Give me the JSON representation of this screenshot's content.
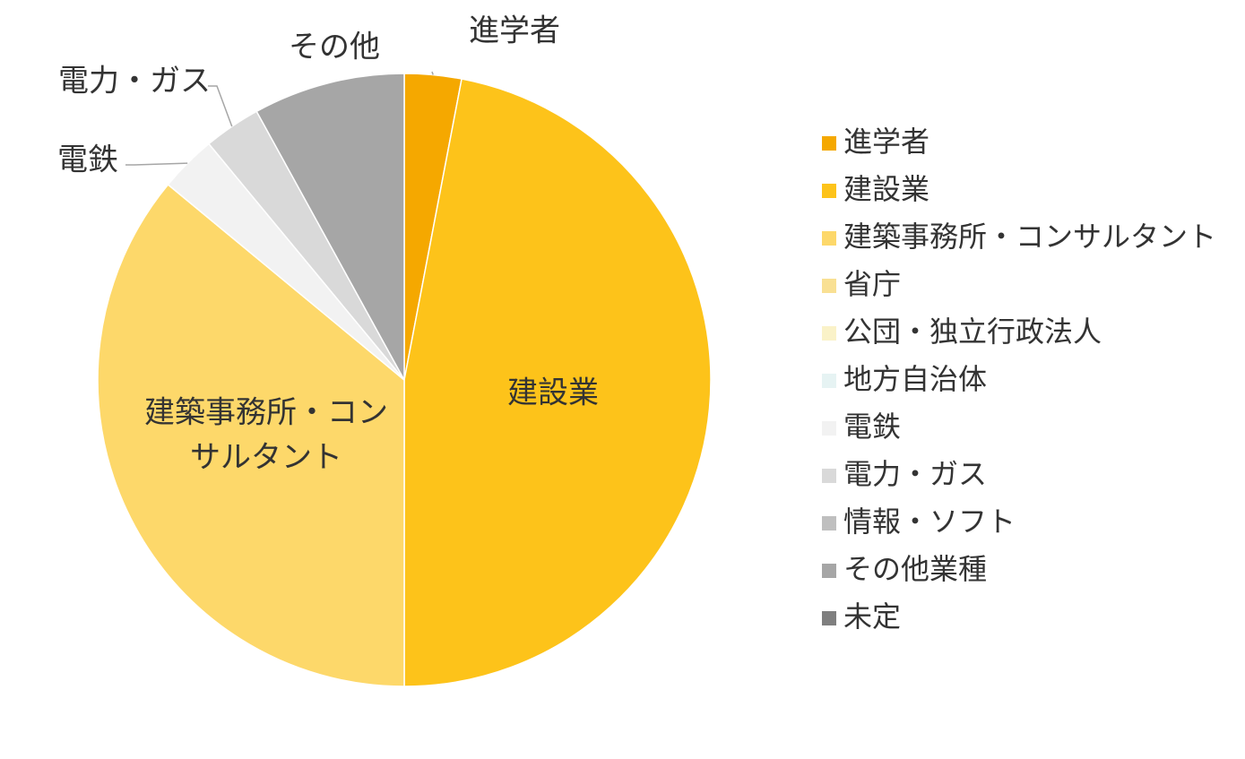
{
  "chart_data": {
    "type": "pie",
    "categories": [
      "進学者",
      "建設業",
      "建築事務所・コンサルタント",
      "省庁",
      "公団・独立行政法人",
      "地方自治体",
      "電鉄",
      "電力・ガス",
      "情報・ソフト",
      "その他業種",
      "未定"
    ],
    "values": [
      3.0,
      47.0,
      36.0,
      0,
      0,
      0,
      3.0,
      3.0,
      0,
      8.0,
      0
    ],
    "colors": [
      "#F5A800",
      "#FDC31A",
      "#FDD86A",
      "#F9E093",
      "#FAF2C8",
      "#E6F3F3",
      "#F2F2F2",
      "#D9D9D9",
      "#BFBFBF",
      "#A6A6A6",
      "#7F7F7F"
    ],
    "slice_labels": [
      {
        "text": "進学者",
        "category": "進学者"
      },
      {
        "text": "建設業",
        "category": "建設業"
      },
      {
        "text": "建築事務所・コン",
        "category": "建築事務所・コンサルタント"
      },
      {
        "text": "サルタント",
        "category": "建築事務所・コンサルタント"
      },
      {
        "text": "電鉄",
        "category": "電鉄"
      },
      {
        "text": "電力・ガス",
        "category": "電力・ガス"
      },
      {
        "text": "その他",
        "category": "その他業種"
      }
    ],
    "legend": {
      "position": "right"
    }
  }
}
